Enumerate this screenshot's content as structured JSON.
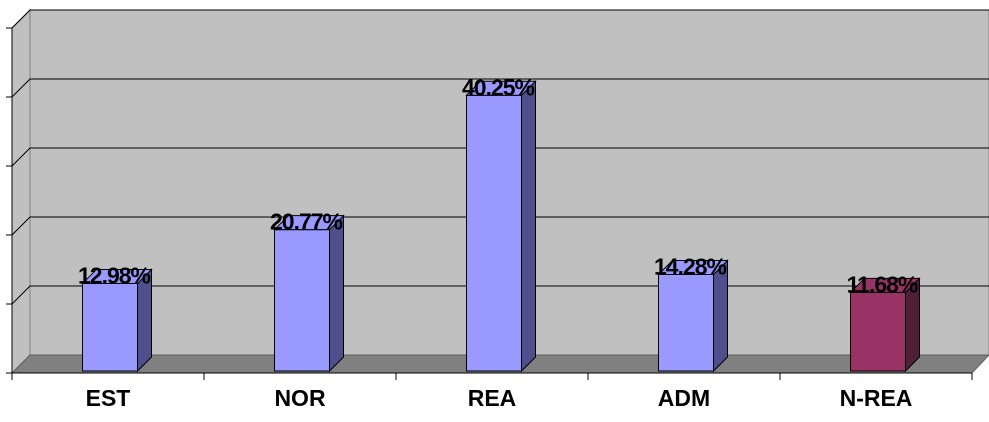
{
  "chart_data": {
    "type": "bar",
    "categories": [
      "EST",
      "NOR",
      "REA",
      "ADM",
      "N-REA"
    ],
    "values": [
      12.98,
      20.77,
      40.25,
      14.28,
      11.68
    ],
    "value_labels": [
      "12.98%",
      "20.77%",
      "40.25%",
      "14.28%",
      "11.68%"
    ],
    "title": "",
    "xlabel": "",
    "ylabel": "",
    "ylim": [
      0,
      50
    ],
    "grid": true,
    "legend": "none",
    "style": "3d-column",
    "colors": {
      "wall": "#C0C0C0",
      "floor": "#808080",
      "bar_default": "#9999FF",
      "bar_default_side": "#4F4F8E",
      "bar_highlight": "#993366",
      "bar_highlight_side": "#4F1F36",
      "highlight_category": "N-REA"
    }
  }
}
